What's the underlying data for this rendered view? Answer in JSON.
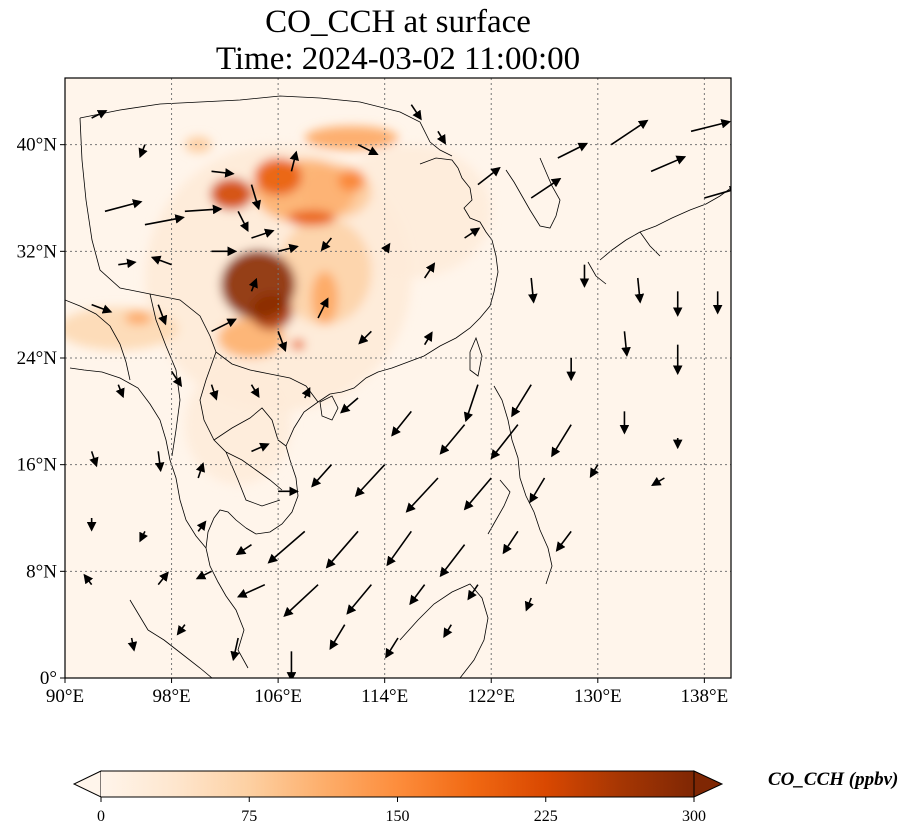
{
  "title": {
    "line1": "CO_CCH at surface",
    "line2": "Time: 2024-03-02 11:00:00"
  },
  "map": {
    "lon_range": [
      90,
      140
    ],
    "lat_range": [
      0,
      45
    ],
    "lon_ticks": [
      {
        "value": 90,
        "label": "90°E"
      },
      {
        "value": 98,
        "label": "98°E"
      },
      {
        "value": 106,
        "label": "106°E"
      },
      {
        "value": 114,
        "label": "114°E"
      },
      {
        "value": 122,
        "label": "122°E"
      },
      {
        "value": 130,
        "label": "130°E"
      },
      {
        "value": 138,
        "label": "138°E"
      }
    ],
    "lat_ticks": [
      {
        "value": 0,
        "label": "0°"
      },
      {
        "value": 8,
        "label": "8°N"
      },
      {
        "value": 16,
        "label": "16°N"
      },
      {
        "value": 24,
        "label": "24°N"
      },
      {
        "value": 32,
        "label": "32°N"
      },
      {
        "value": 40,
        "label": "40°N"
      }
    ],
    "gridlines": true,
    "background_color": "#fff5eb",
    "coast_color": "#000000"
  },
  "colorbar": {
    "label": "CO_CCH (ppbv)",
    "min": 0,
    "max": 300,
    "ticks": [
      {
        "value": 0,
        "label": "0"
      },
      {
        "value": 75,
        "label": "75"
      },
      {
        "value": 150,
        "label": "150"
      },
      {
        "value": 225,
        "label": "225"
      },
      {
        "value": 300,
        "label": "300"
      }
    ],
    "colors": [
      "#fff5eb",
      "#fee6ce",
      "#fdd0a2",
      "#fdae6b",
      "#fd8d3c",
      "#f16913",
      "#d94801",
      "#a63603",
      "#7f2704"
    ],
    "extend": "both"
  },
  "plumes": [
    {
      "lon": 104.5,
      "lat": 29.5,
      "rx": 2.8,
      "ry": 2.6,
      "value": 290
    },
    {
      "lon": 105.5,
      "lat": 27.5,
      "rx": 1.6,
      "ry": 1.4,
      "value": 260
    },
    {
      "lon": 104.0,
      "lat": 25.5,
      "rx": 2.5,
      "ry": 1.5,
      "value": 110
    },
    {
      "lon": 102.5,
      "lat": 36.3,
      "rx": 1.6,
      "ry": 1.2,
      "value": 230
    },
    {
      "lon": 106.0,
      "lat": 37.6,
      "rx": 1.8,
      "ry": 1.4,
      "value": 200
    },
    {
      "lon": 108.0,
      "lat": 36.5,
      "rx": 3.8,
      "ry": 2.4,
      "value": 110
    },
    {
      "lon": 110.5,
      "lat": 36.5,
      "rx": 2.5,
      "ry": 2.0,
      "value": 80
    },
    {
      "lon": 108.5,
      "lat": 34.5,
      "rx": 1.8,
      "ry": 0.6,
      "value": 200
    },
    {
      "lon": 111.5,
      "lat": 37.3,
      "rx": 1.0,
      "ry": 0.8,
      "value": 160
    },
    {
      "lon": 111.5,
      "lat": 40.5,
      "rx": 3.5,
      "ry": 0.9,
      "value": 120
    },
    {
      "lon": 109.5,
      "lat": 30.5,
      "rx": 3.5,
      "ry": 4.0,
      "value": 70
    },
    {
      "lon": 109.5,
      "lat": 28.5,
      "rx": 1.0,
      "ry": 2.0,
      "value": 120
    },
    {
      "lon": 107.5,
      "lat": 25.0,
      "rx": 0.5,
      "ry": 0.4,
      "value": 200
    },
    {
      "lon": 94.0,
      "lat": 26.2,
      "rx": 4.5,
      "ry": 1.6,
      "value": 60
    },
    {
      "lon": 95.5,
      "lat": 27.0,
      "rx": 1.0,
      "ry": 0.5,
      "value": 120
    },
    {
      "lon": 106.0,
      "lat": 30.0,
      "rx": 10.0,
      "ry": 10.0,
      "value": 25
    },
    {
      "lon": 100.0,
      "lat": 40.0,
      "rx": 1.0,
      "ry": 0.6,
      "value": 80
    },
    {
      "lon": 103.0,
      "lat": 19.0,
      "rx": 4.0,
      "ry": 4.5,
      "value": 22
    },
    {
      "lon": 116.0,
      "lat": 35.0,
      "rx": 6.0,
      "ry": 5.0,
      "value": 22
    }
  ],
  "wind_arrows": [
    {
      "lon": 92,
      "lat": 42,
      "u": 0.6,
      "v": 0.3
    },
    {
      "lon": 96,
      "lat": 40,
      "u": -0.2,
      "v": -0.5
    },
    {
      "lon": 101,
      "lat": 38,
      "u": 0.9,
      "v": -0.1
    },
    {
      "lon": 103,
      "lat": 35,
      "u": 0.4,
      "v": -0.8
    },
    {
      "lon": 104,
      "lat": 37,
      "u": 0.3,
      "v": -1.0
    },
    {
      "lon": 107,
      "lat": 38,
      "u": 0.2,
      "v": 0.8
    },
    {
      "lon": 112,
      "lat": 40,
      "u": 0.8,
      "v": -0.4
    },
    {
      "lon": 116,
      "lat": 43,
      "u": 0.4,
      "v": -0.6
    },
    {
      "lon": 118,
      "lat": 41,
      "u": 0.3,
      "v": -0.5
    },
    {
      "lon": 121,
      "lat": 37,
      "u": 0.9,
      "v": 0.7
    },
    {
      "lon": 125,
      "lat": 36,
      "u": 1.2,
      "v": 0.8
    },
    {
      "lon": 127,
      "lat": 39,
      "u": 1.2,
      "v": 0.6
    },
    {
      "lon": 131,
      "lat": 40,
      "u": 1.5,
      "v": 1.0
    },
    {
      "lon": 134,
      "lat": 38,
      "u": 1.4,
      "v": 0.6
    },
    {
      "lon": 137,
      "lat": 41,
      "u": 1.6,
      "v": 0.4
    },
    {
      "lon": 138,
      "lat": 36,
      "u": 1.4,
      "v": 0.4
    },
    {
      "lon": 93,
      "lat": 35,
      "u": 1.5,
      "v": 0.4
    },
    {
      "lon": 96,
      "lat": 34,
      "u": 1.6,
      "v": 0.3
    },
    {
      "lon": 99,
      "lat": 35,
      "u": 1.5,
      "v": 0.1
    },
    {
      "lon": 94,
      "lat": 31,
      "u": 0.7,
      "v": 0.1
    },
    {
      "lon": 98,
      "lat": 31,
      "u": -0.8,
      "v": 0.3
    },
    {
      "lon": 101,
      "lat": 32,
      "u": 1.0,
      "v": 0.0
    },
    {
      "lon": 104,
      "lat": 33,
      "u": 0.9,
      "v": 0.3
    },
    {
      "lon": 106,
      "lat": 32,
      "u": 0.8,
      "v": 0.2
    },
    {
      "lon": 110,
      "lat": 33,
      "u": -0.4,
      "v": -0.5
    },
    {
      "lon": 114,
      "lat": 32,
      "u": 0.2,
      "v": 0.3
    },
    {
      "lon": 117,
      "lat": 30,
      "u": 0.4,
      "v": 0.6
    },
    {
      "lon": 120,
      "lat": 33,
      "u": 0.6,
      "v": 0.4
    },
    {
      "lon": 125,
      "lat": 30,
      "u": 0.1,
      "v": -1.0
    },
    {
      "lon": 129,
      "lat": 31,
      "u": 0.0,
      "v": -0.9
    },
    {
      "lon": 133,
      "lat": 30,
      "u": 0.1,
      "v": -1.0
    },
    {
      "lon": 136,
      "lat": 29,
      "u": 0.0,
      "v": -1.0
    },
    {
      "lon": 139,
      "lat": 29,
      "u": 0.0,
      "v": -0.9
    },
    {
      "lon": 92,
      "lat": 28,
      "u": 0.8,
      "v": -0.3
    },
    {
      "lon": 97,
      "lat": 28,
      "u": 0.3,
      "v": -0.8
    },
    {
      "lon": 101,
      "lat": 26,
      "u": 1.0,
      "v": 0.5
    },
    {
      "lon": 104,
      "lat": 29,
      "u": 0.2,
      "v": 0.5
    },
    {
      "lon": 106,
      "lat": 26,
      "u": 0.3,
      "v": -0.8
    },
    {
      "lon": 109,
      "lat": 27,
      "u": 0.4,
      "v": 0.8
    },
    {
      "lon": 113,
      "lat": 26,
      "u": -0.5,
      "v": -0.5
    },
    {
      "lon": 117,
      "lat": 25,
      "u": 0.3,
      "v": 0.5
    },
    {
      "lon": 121,
      "lat": 22,
      "u": -0.5,
      "v": -1.5
    },
    {
      "lon": 125,
      "lat": 22,
      "u": -0.8,
      "v": -1.3
    },
    {
      "lon": 128,
      "lat": 24,
      "u": 0.0,
      "v": -0.9
    },
    {
      "lon": 132,
      "lat": 26,
      "u": 0.1,
      "v": -1.0
    },
    {
      "lon": 136,
      "lat": 25,
      "u": 0.0,
      "v": -1.2
    },
    {
      "lon": 94,
      "lat": 22,
      "u": 0.2,
      "v": -0.5
    },
    {
      "lon": 98,
      "lat": 23,
      "u": 0.4,
      "v": -0.6
    },
    {
      "lon": 101,
      "lat": 22,
      "u": 0.2,
      "v": -0.6
    },
    {
      "lon": 104,
      "lat": 22,
      "u": 0.3,
      "v": -0.5
    },
    {
      "lon": 108,
      "lat": 21,
      "u": 0.2,
      "v": 0.4
    },
    {
      "lon": 112,
      "lat": 21,
      "u": -0.7,
      "v": -0.6
    },
    {
      "lon": 116,
      "lat": 20,
      "u": -0.8,
      "v": -1.0
    },
    {
      "lon": 120,
      "lat": 19,
      "u": -1.0,
      "v": -1.2
    },
    {
      "lon": 124,
      "lat": 19,
      "u": -1.1,
      "v": -1.4
    },
    {
      "lon": 128,
      "lat": 19,
      "u": -0.8,
      "v": -1.3
    },
    {
      "lon": 132,
      "lat": 20,
      "u": 0.0,
      "v": -0.9
    },
    {
      "lon": 136,
      "lat": 18,
      "u": 0.0,
      "v": -0.4
    },
    {
      "lon": 92,
      "lat": 17,
      "u": 0.2,
      "v": -0.6
    },
    {
      "lon": 97,
      "lat": 17,
      "u": 0.1,
      "v": -0.8
    },
    {
      "lon": 100,
      "lat": 15,
      "u": 0.2,
      "v": 0.6
    },
    {
      "lon": 104,
      "lat": 17,
      "u": 0.7,
      "v": 0.3
    },
    {
      "lon": 106,
      "lat": 14,
      "u": 0.8,
      "v": 0.0
    },
    {
      "lon": 110,
      "lat": 16,
      "u": -0.8,
      "v": -0.9
    },
    {
      "lon": 114,
      "lat": 16,
      "u": -1.2,
      "v": -1.3
    },
    {
      "lon": 118,
      "lat": 15,
      "u": -1.3,
      "v": -1.4
    },
    {
      "lon": 122,
      "lat": 15,
      "u": -1.1,
      "v": -1.3
    },
    {
      "lon": 126,
      "lat": 15,
      "u": -0.6,
      "v": -1.0
    },
    {
      "lon": 130,
      "lat": 16,
      "u": -0.3,
      "v": -0.5
    },
    {
      "lon": 135,
      "lat": 15,
      "u": -0.5,
      "v": -0.3
    },
    {
      "lon": 92,
      "lat": 12,
      "u": 0.0,
      "v": -0.5
    },
    {
      "lon": 96,
      "lat": 11,
      "u": -0.2,
      "v": -0.4
    },
    {
      "lon": 100,
      "lat": 11,
      "u": 0.3,
      "v": 0.4
    },
    {
      "lon": 104,
      "lat": 10,
      "u": -0.6,
      "v": -0.4
    },
    {
      "lon": 108,
      "lat": 11,
      "u": -1.5,
      "v": -1.3
    },
    {
      "lon": 112,
      "lat": 11,
      "u": -1.3,
      "v": -1.5
    },
    {
      "lon": 116,
      "lat": 11,
      "u": -1.0,
      "v": -1.4
    },
    {
      "lon": 120,
      "lat": 10,
      "u": -1.0,
      "v": -1.3
    },
    {
      "lon": 124,
      "lat": 11,
      "u": -0.6,
      "v": -0.9
    },
    {
      "lon": 128,
      "lat": 11,
      "u": -0.6,
      "v": -0.8
    },
    {
      "lon": 92,
      "lat": 7,
      "u": -0.3,
      "v": 0.4
    },
    {
      "lon": 97,
      "lat": 7,
      "u": 0.4,
      "v": 0.5
    },
    {
      "lon": 101,
      "lat": 8,
      "u": -0.6,
      "v": -0.3
    },
    {
      "lon": 105,
      "lat": 7,
      "u": -1.1,
      "v": -0.5
    },
    {
      "lon": 109,
      "lat": 7,
      "u": -1.4,
      "v": -1.3
    },
    {
      "lon": 113,
      "lat": 7,
      "u": -1.0,
      "v": -1.2
    },
    {
      "lon": 117,
      "lat": 7,
      "u": -0.6,
      "v": -0.8
    },
    {
      "lon": 121,
      "lat": 7,
      "u": -0.4,
      "v": -0.6
    },
    {
      "lon": 125,
      "lat": 6,
      "u": -0.2,
      "v": -0.5
    },
    {
      "lon": 95,
      "lat": 3,
      "u": 0.1,
      "v": -0.5
    },
    {
      "lon": 99,
      "lat": 4,
      "u": -0.3,
      "v": -0.4
    },
    {
      "lon": 103,
      "lat": 3,
      "u": -0.2,
      "v": -0.9
    },
    {
      "lon": 107,
      "lat": 2,
      "u": 0.0,
      "v": -1.2
    },
    {
      "lon": 111,
      "lat": 4,
      "u": -0.6,
      "v": -1.0
    },
    {
      "lon": 115,
      "lat": 3,
      "u": -0.5,
      "v": -0.8
    },
    {
      "lon": 119,
      "lat": 4,
      "u": -0.3,
      "v": -0.5
    }
  ]
}
